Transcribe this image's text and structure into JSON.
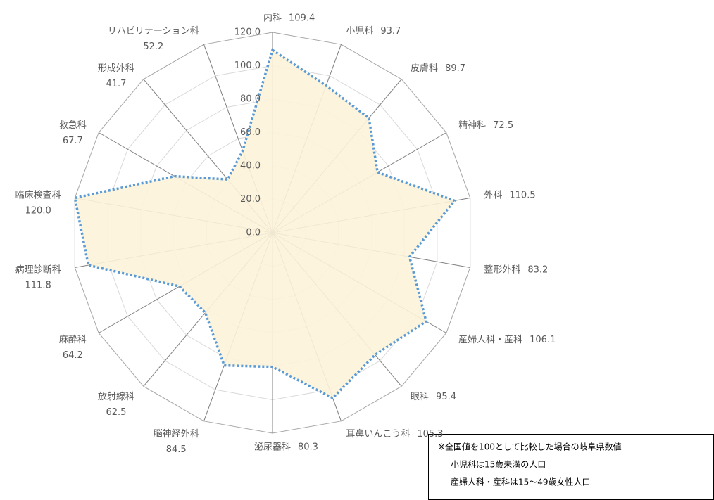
{
  "chart_data": {
    "type": "radar",
    "categories": [
      "内科",
      "小児科",
      "皮膚科",
      "精神科",
      "外科",
      "整形外科",
      "産婦人科・産科",
      "眼科",
      "耳鼻いんこう科",
      "泌尿器科",
      "脳神経外科",
      "放射線科",
      "麻酔科",
      "病理診断科",
      "臨床検査科",
      "救急科",
      "形成外科",
      "リハビリテーション科"
    ],
    "values": [
      109.4,
      93.7,
      89.7,
      72.5,
      110.5,
      83.2,
      106.1,
      95.4,
      105.3,
      80.3,
      84.5,
      62.5,
      64.2,
      111.8,
      120.0,
      67.7,
      41.7,
      52.2
    ],
    "value_labels": [
      "109.4",
      "93.7",
      "89.7",
      "72.5",
      "110.5",
      "83.2",
      "106.1",
      "95.4",
      "105.3",
      "80.3",
      "84.5",
      "62.5",
      "64.2",
      "111.8",
      "120.0",
      "67.7",
      "41.7",
      "52.2"
    ],
    "color": "#5b9bd5",
    "fill": "#fdf3d9",
    "ylim": [
      0,
      120
    ],
    "yticks": [
      {
        "value": 0,
        "label": "0.0"
      },
      {
        "value": 20,
        "label": "20.0"
      },
      {
        "value": 40,
        "label": "40.0"
      },
      {
        "value": 60,
        "label": "60.0"
      },
      {
        "value": 80,
        "label": "80.0"
      },
      {
        "value": 100,
        "label": "100.0"
      },
      {
        "value": 120,
        "label": "120.0"
      }
    ],
    "grid": true,
    "notes": [
      "※全国値を100として比較した場合の岐阜県数値",
      "小児科は15歳未満の人口",
      "産婦人科・産科は15～49歳女性人口"
    ]
  }
}
